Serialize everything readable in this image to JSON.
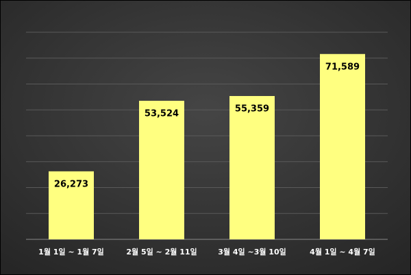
{
  "chart_data": {
    "type": "bar",
    "categories": [
      "1월 1일 ~ 1월 7일",
      "2월 5일 ~ 2월 11일",
      "3월 4일 ~3월 10일",
      "4월 1일 ~ 4월 7일"
    ],
    "values": [
      26273,
      53524,
      55359,
      71589
    ],
    "value_labels": [
      "26,273",
      "53,524",
      "55,359",
      "71,589"
    ],
    "color": "#ffff80",
    "ylim": [
      0,
      80000
    ],
    "yticks": [
      0,
      10000,
      20000,
      30000,
      40000,
      50000,
      60000,
      70000,
      80000
    ],
    "grid": true
  }
}
